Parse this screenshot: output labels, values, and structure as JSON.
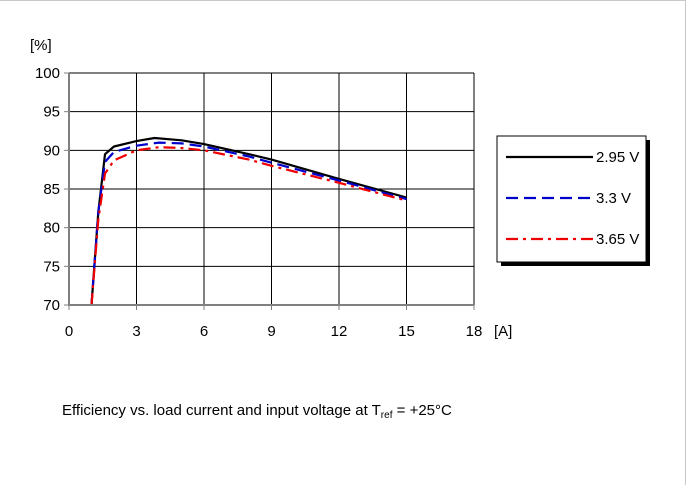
{
  "chart_data": {
    "type": "line",
    "title": "",
    "xlabel": "[A]",
    "ylabel": "[%]",
    "xlim": [
      0,
      18
    ],
    "ylim": [
      70,
      100
    ],
    "x_ticks": [
      "0",
      "3",
      "6",
      "9",
      "12",
      "15",
      "18"
    ],
    "y_ticks": [
      "70",
      "75",
      "80",
      "85",
      "90",
      "95",
      "100"
    ],
    "grid": true,
    "legend_position": "right",
    "series": [
      {
        "name": "2.95 V",
        "color": "#000000",
        "style": "solid",
        "points": [
          [
            1.0,
            70
          ],
          [
            1.3,
            82
          ],
          [
            1.6,
            89.5
          ],
          [
            2.0,
            90.5
          ],
          [
            3.0,
            91.2
          ],
          [
            3.8,
            91.6
          ],
          [
            5.0,
            91.3
          ],
          [
            6.0,
            90.8
          ],
          [
            8.0,
            89.5
          ],
          [
            9.0,
            88.8
          ],
          [
            12.0,
            86.3
          ],
          [
            15.0,
            83.9
          ]
        ]
      },
      {
        "name": "3.3 V",
        "color": "#0000cc",
        "style": "dashed",
        "points": [
          [
            1.0,
            70
          ],
          [
            1.3,
            82
          ],
          [
            1.6,
            88.5
          ],
          [
            2.0,
            89.8
          ],
          [
            3.0,
            90.6
          ],
          [
            4.0,
            91.0
          ],
          [
            5.0,
            90.9
          ],
          [
            6.0,
            90.5
          ],
          [
            8.0,
            89.2
          ],
          [
            9.0,
            88.4
          ],
          [
            12.0,
            86.1
          ],
          [
            15.0,
            83.7
          ]
        ]
      },
      {
        "name": "3.65 V",
        "color": "#ee0000",
        "style": "dashdot",
        "points": [
          [
            1.0,
            70
          ],
          [
            1.3,
            81
          ],
          [
            1.6,
            87.0
          ],
          [
            2.0,
            88.7
          ],
          [
            3.0,
            90.0
          ],
          [
            4.0,
            90.4
          ],
          [
            5.0,
            90.3
          ],
          [
            6.0,
            90.0
          ],
          [
            8.0,
            88.8
          ],
          [
            9.0,
            88.0
          ],
          [
            12.0,
            85.8
          ],
          [
            15.0,
            83.5
          ]
        ]
      }
    ],
    "caption_main": "Efficiency vs. load current and input voltage at T",
    "caption_sub": "ref",
    "caption_tail": " = +25°C"
  }
}
